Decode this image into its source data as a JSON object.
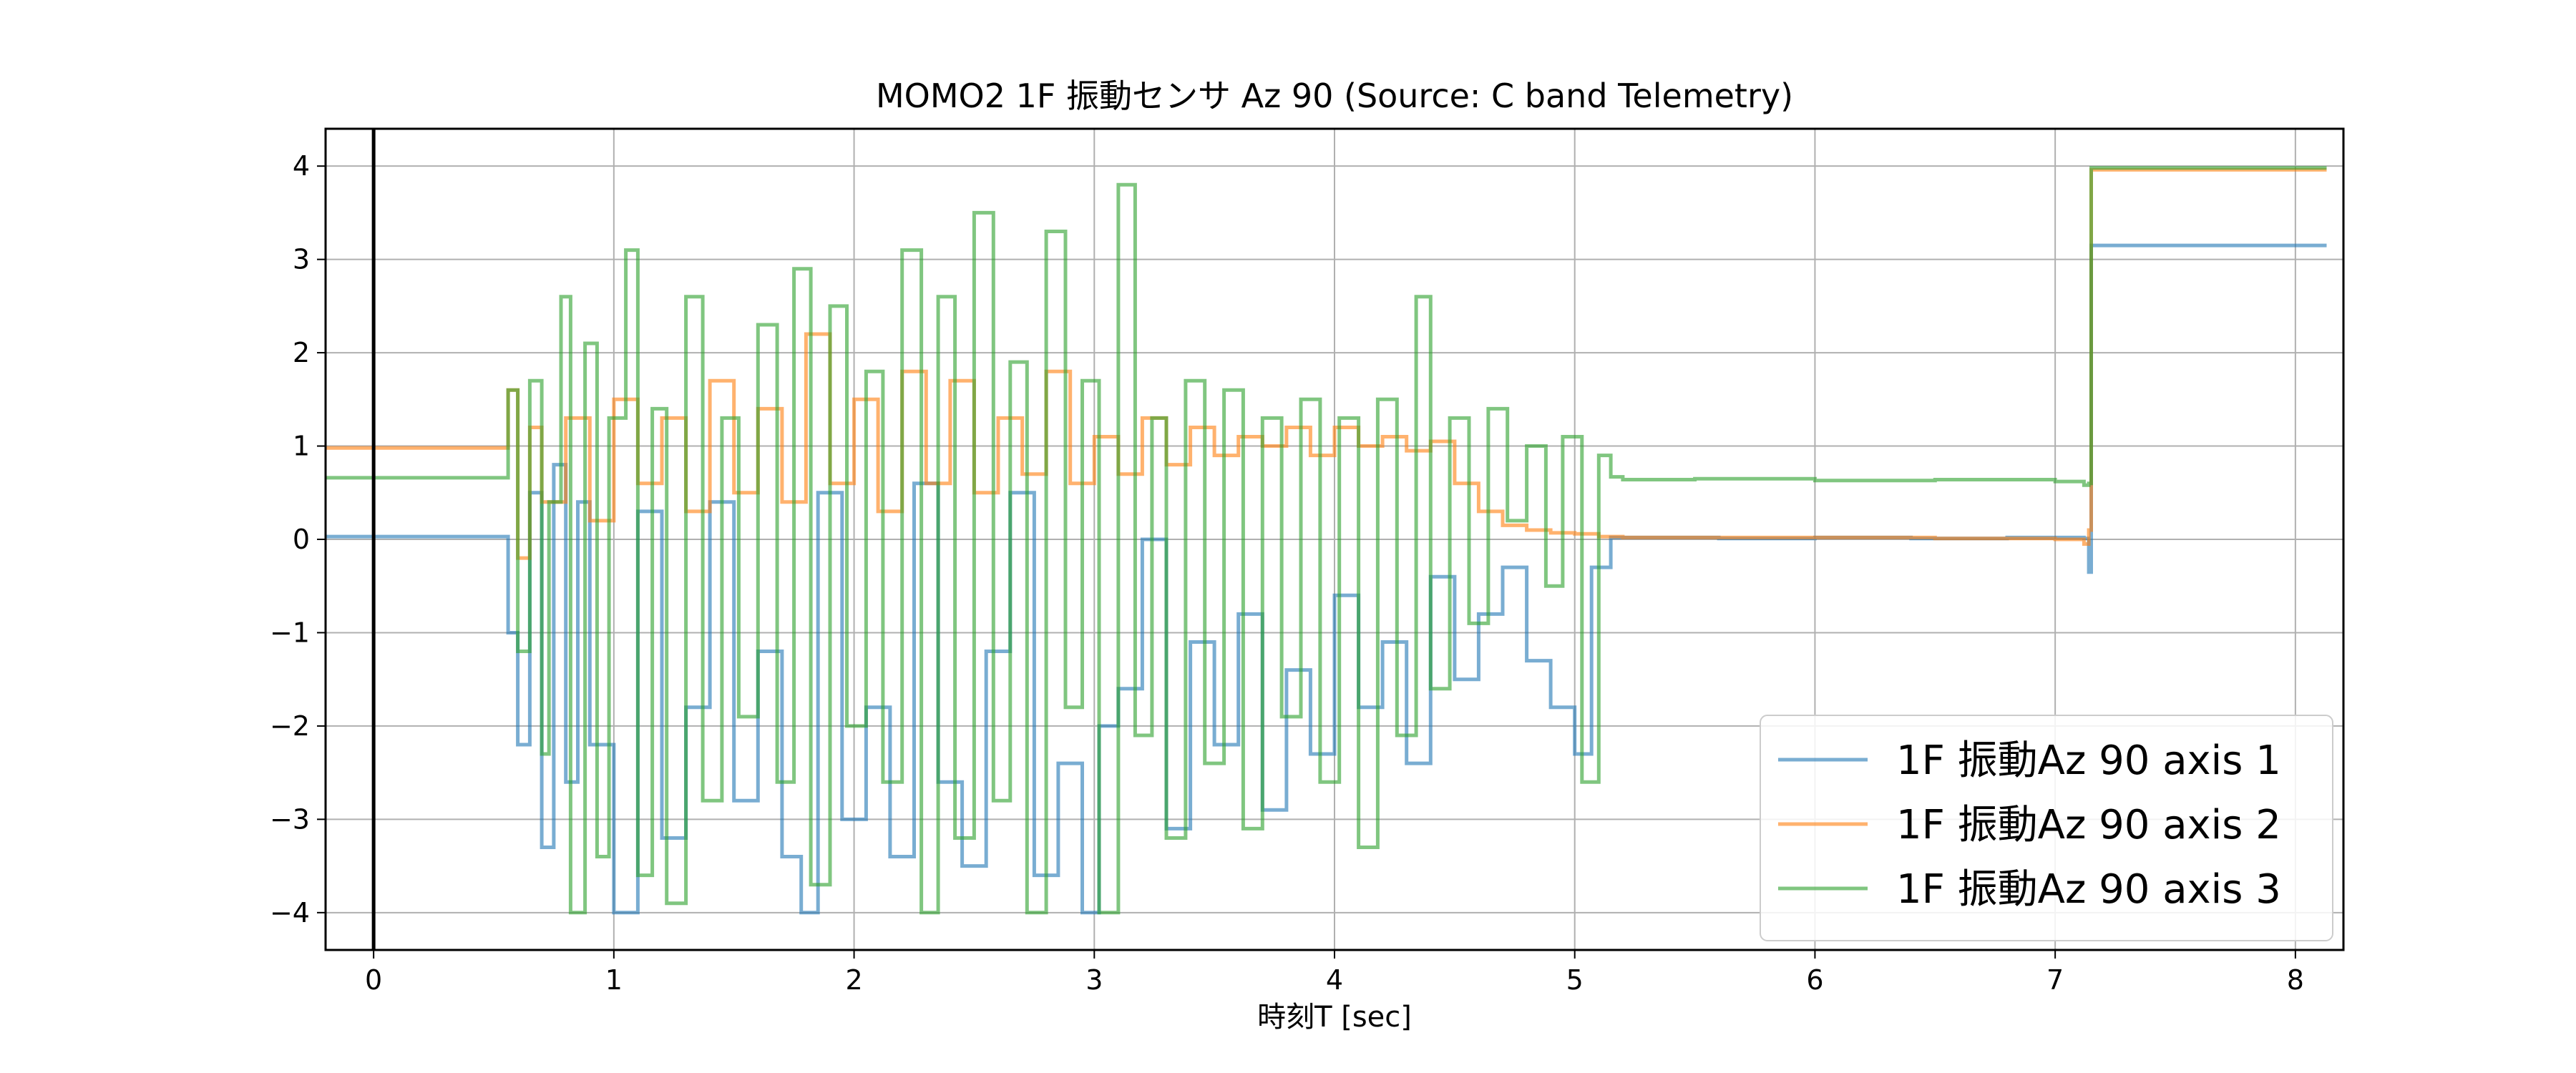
{
  "chart_data": {
    "type": "line",
    "title": "MOMO2 1F 振動センサ Az 90 (Source: C band Telemetry)",
    "xlabel": "時刻T [sec]",
    "ylabel": "",
    "xlim": [
      -0.2,
      8.2
    ],
    "ylim": [
      -4.4,
      4.4
    ],
    "xticks": [
      "0",
      "1",
      "2",
      "3",
      "4",
      "5",
      "6",
      "7",
      "8"
    ],
    "yticks": [
      "−4",
      "−3",
      "−2",
      "−1",
      "0",
      "1",
      "2",
      "3",
      "4"
    ],
    "grid": true,
    "legend_position": "lower-right",
    "vertical_marker_x": 0,
    "series": [
      {
        "name": "1F 振動Az 90 axis 1",
        "color": "#1f77b4",
        "x": [
          -0.2,
          0.55,
          0.56,
          0.6,
          0.65,
          0.7,
          0.75,
          0.8,
          0.85,
          0.9,
          1.0,
          1.1,
          1.2,
          1.3,
          1.4,
          1.5,
          1.6,
          1.7,
          1.78,
          1.85,
          1.95,
          2.05,
          2.15,
          2.25,
          2.35,
          2.45,
          2.55,
          2.65,
          2.75,
          2.85,
          2.95,
          3.02,
          3.1,
          3.2,
          3.3,
          3.4,
          3.5,
          3.6,
          3.7,
          3.8,
          3.9,
          4.0,
          4.1,
          4.2,
          4.3,
          4.4,
          4.5,
          4.6,
          4.7,
          4.8,
          4.9,
          5.0,
          5.07,
          5.15,
          5.3,
          5.6,
          6.0,
          6.4,
          6.8,
          7.12,
          7.14,
          7.15,
          8.13
        ],
        "y": [
          0.03,
          0.03,
          -1.0,
          -2.2,
          0.5,
          -3.3,
          0.8,
          -2.6,
          0.4,
          -2.2,
          -4.0,
          0.3,
          -3.2,
          -1.8,
          0.4,
          -2.8,
          -1.2,
          -3.4,
          -4.0,
          0.5,
          -3.0,
          -1.8,
          -3.4,
          0.6,
          -2.6,
          -3.5,
          -1.2,
          0.5,
          -3.6,
          -2.4,
          -4.0,
          -2.0,
          -1.6,
          0.0,
          -3.1,
          -1.1,
          -2.2,
          -0.8,
          -2.9,
          -1.4,
          -2.3,
          -0.6,
          -1.8,
          -1.1,
          -2.4,
          -0.4,
          -1.5,
          -0.8,
          -0.3,
          -1.3,
          -1.8,
          -2.3,
          -0.3,
          0.02,
          0.02,
          0.01,
          0.02,
          0.01,
          0.02,
          0.01,
          -0.35,
          3.15,
          3.15
        ]
      },
      {
        "name": "1F 振動Az 90 axis 2",
        "color": "#ff7f0e",
        "x": [
          -0.2,
          0.55,
          0.56,
          0.6,
          0.65,
          0.7,
          0.8,
          0.9,
          1.0,
          1.1,
          1.2,
          1.3,
          1.4,
          1.5,
          1.6,
          1.7,
          1.8,
          1.9,
          2.0,
          2.1,
          2.2,
          2.3,
          2.4,
          2.5,
          2.6,
          2.7,
          2.8,
          2.9,
          3.0,
          3.1,
          3.2,
          3.3,
          3.4,
          3.5,
          3.6,
          3.7,
          3.8,
          3.9,
          4.0,
          4.1,
          4.2,
          4.3,
          4.4,
          4.5,
          4.6,
          4.7,
          4.8,
          4.9,
          5.0,
          5.1,
          5.2,
          5.5,
          6.0,
          6.5,
          7.0,
          7.12,
          7.14,
          7.15,
          8.13
        ],
        "y": [
          0.98,
          0.98,
          1.6,
          -0.2,
          1.2,
          0.4,
          1.3,
          0.2,
          1.5,
          0.6,
          1.3,
          0.3,
          1.7,
          0.5,
          1.4,
          0.4,
          2.2,
          0.6,
          1.5,
          0.3,
          1.8,
          0.6,
          1.7,
          0.5,
          1.3,
          0.7,
          1.8,
          0.6,
          1.1,
          0.7,
          1.3,
          0.8,
          1.2,
          0.9,
          1.1,
          1.0,
          1.2,
          0.9,
          1.2,
          1.0,
          1.1,
          0.95,
          1.05,
          0.6,
          0.3,
          0.15,
          0.1,
          0.07,
          0.06,
          0.03,
          0.02,
          0.02,
          0.02,
          0.01,
          0.0,
          -0.05,
          0.1,
          3.96,
          3.96
        ]
      },
      {
        "name": "1F 振動Az 90 axis 3",
        "color": "#2ca02c",
        "x": [
          -0.2,
          0.55,
          0.56,
          0.6,
          0.65,
          0.7,
          0.73,
          0.78,
          0.82,
          0.88,
          0.93,
          0.98,
          1.05,
          1.1,
          1.16,
          1.22,
          1.3,
          1.37,
          1.45,
          1.52,
          1.6,
          1.68,
          1.75,
          1.82,
          1.9,
          1.97,
          2.05,
          2.12,
          2.2,
          2.28,
          2.35,
          2.42,
          2.5,
          2.58,
          2.65,
          2.72,
          2.8,
          2.88,
          2.95,
          3.02,
          3.1,
          3.17,
          3.24,
          3.3,
          3.38,
          3.46,
          3.54,
          3.62,
          3.7,
          3.78,
          3.86,
          3.94,
          4.02,
          4.1,
          4.18,
          4.26,
          4.34,
          4.4,
          4.48,
          4.56,
          4.64,
          4.72,
          4.8,
          4.88,
          4.95,
          5.03,
          5.1,
          5.15,
          5.2,
          5.5,
          6.0,
          6.5,
          7.0,
          7.12,
          7.14,
          7.15,
          8.13
        ],
        "y": [
          0.66,
          0.66,
          1.6,
          -1.2,
          1.7,
          -2.3,
          0.4,
          2.6,
          -4.0,
          2.1,
          -3.4,
          1.3,
          3.1,
          -3.6,
          1.4,
          -3.9,
          2.6,
          -2.8,
          1.3,
          -1.9,
          2.3,
          -2.6,
          2.9,
          -3.7,
          2.5,
          -2.0,
          1.8,
          -2.6,
          3.1,
          -4.0,
          2.6,
          -3.2,
          3.5,
          -2.8,
          1.9,
          -4.0,
          3.3,
          -1.8,
          1.7,
          -4.0,
          3.8,
          -2.1,
          1.3,
          -3.2,
          1.7,
          -2.4,
          1.6,
          -3.1,
          1.3,
          -1.9,
          1.5,
          -2.6,
          1.3,
          -3.3,
          1.5,
          -2.1,
          2.6,
          -1.6,
          1.3,
          -0.9,
          1.4,
          0.2,
          1.0,
          -0.5,
          1.1,
          -2.6,
          0.9,
          0.67,
          0.64,
          0.65,
          0.63,
          0.64,
          0.62,
          0.58,
          0.6,
          3.98,
          3.98
        ]
      }
    ]
  }
}
